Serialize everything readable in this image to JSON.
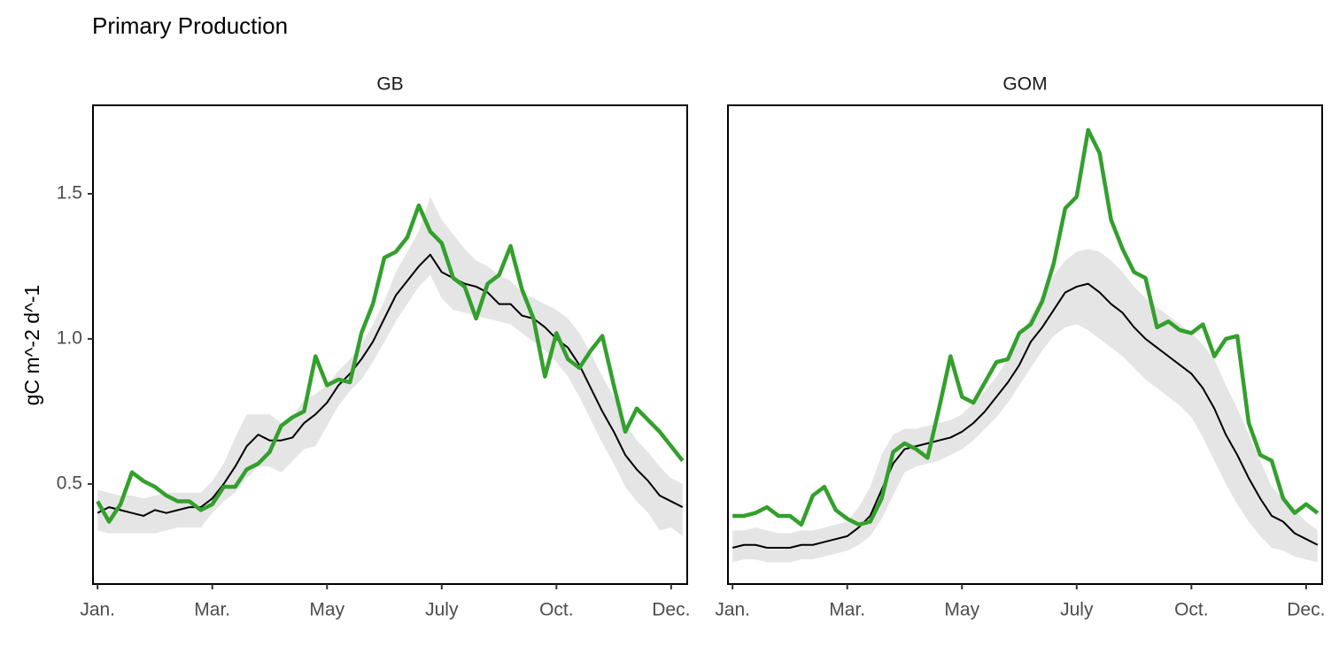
{
  "title": "Primary Production",
  "ylabel": "gC m^-2 d^-1",
  "chart_data": [
    {
      "type": "line",
      "facet": "GB",
      "x": [
        1,
        2,
        3,
        4,
        5,
        6,
        7,
        8,
        9,
        10,
        11,
        12,
        13,
        14,
        15,
        16,
        17,
        18,
        19,
        20,
        21,
        22,
        23,
        24,
        25,
        26,
        27,
        28,
        29,
        30,
        31,
        32,
        33,
        34,
        35,
        36,
        37,
        38,
        39,
        40,
        41,
        42,
        43,
        44,
        45,
        46,
        47,
        48,
        49,
        50,
        51,
        52
      ],
      "xlim": [
        0.6,
        52.4
      ],
      "xticks": [
        {
          "value": 1,
          "label": "Jan."
        },
        {
          "value": 11,
          "label": "Mar."
        },
        {
          "value": 21,
          "label": "May"
        },
        {
          "value": 31,
          "label": "July"
        },
        {
          "value": 41,
          "label": "Oct."
        },
        {
          "value": 51,
          "label": "Dec."
        }
      ],
      "ylim": [
        0.155,
        1.805
      ],
      "yticks": [
        0.5,
        {
          "value": 1,
          "label": "1.0"
        },
        1.5
      ],
      "band": {
        "color": "#e5e5e5",
        "lower": [
          0.34,
          0.33,
          0.33,
          0.33,
          0.33,
          0.33,
          0.34,
          0.35,
          0.35,
          0.35,
          0.4,
          0.44,
          0.47,
          0.52,
          0.56,
          0.56,
          0.54,
          0.58,
          0.62,
          0.63,
          0.7,
          0.77,
          0.82,
          0.86,
          0.92,
          0.99,
          1.06,
          1.12,
          1.18,
          1.22,
          1.14,
          1.1,
          1.09,
          1.08,
          1.07,
          1.06,
          1.05,
          1.02,
          0.99,
          0.96,
          0.92,
          0.87,
          0.8,
          0.72,
          0.64,
          0.57,
          0.49,
          0.44,
          0.4,
          0.34,
          0.35,
          0.32
        ],
        "upper": [
          0.48,
          0.47,
          0.46,
          0.46,
          0.45,
          0.46,
          0.47,
          0.47,
          0.47,
          0.47,
          0.51,
          0.57,
          0.66,
          0.74,
          0.74,
          0.74,
          0.71,
          0.73,
          0.79,
          0.81,
          0.84,
          0.89,
          0.93,
          0.98,
          1.05,
          1.13,
          1.23,
          1.3,
          1.37,
          1.49,
          1.41,
          1.36,
          1.31,
          1.27,
          1.25,
          1.22,
          1.2,
          1.16,
          1.14,
          1.12,
          1.1,
          1.07,
          1.02,
          0.95,
          0.87,
          0.8,
          0.71,
          0.65,
          0.61,
          0.56,
          0.52,
          0.5
        ]
      },
      "series": [
        {
          "color": "#000000",
          "width": 2,
          "values": [
            0.4,
            0.42,
            0.41,
            0.4,
            0.39,
            0.41,
            0.4,
            0.41,
            0.42,
            0.42,
            0.45,
            0.5,
            0.56,
            0.63,
            0.67,
            0.65,
            0.65,
            0.66,
            0.71,
            0.74,
            0.78,
            0.84,
            0.88,
            0.93,
            0.99,
            1.07,
            1.15,
            1.2,
            1.25,
            1.29,
            1.23,
            1.21,
            1.19,
            1.18,
            1.16,
            1.12,
            1.12,
            1.08,
            1.07,
            1.04,
            1.0,
            0.97,
            0.91,
            0.83,
            0.75,
            0.68,
            0.6,
            0.55,
            0.51,
            0.46,
            0.44,
            0.42
          ]
        },
        {
          "color": "#33a02c",
          "width": 4.5,
          "values": [
            0.44,
            0.37,
            0.43,
            0.54,
            0.51,
            0.49,
            0.46,
            0.44,
            0.44,
            0.41,
            0.43,
            0.49,
            0.49,
            0.55,
            0.57,
            0.61,
            0.7,
            0.73,
            0.75,
            0.94,
            0.84,
            0.86,
            0.85,
            1.02,
            1.12,
            1.28,
            1.3,
            1.35,
            1.46,
            1.37,
            1.33,
            1.21,
            1.18,
            1.07,
            1.19,
            1.22,
            1.32,
            1.17,
            1.07,
            0.87,
            1.02,
            0.93,
            0.9,
            0.96,
            1.01,
            0.84,
            0.68,
            0.76,
            0.72,
            0.68,
            0.63,
            0.58
          ]
        }
      ]
    },
    {
      "type": "line",
      "facet": "GOM",
      "x": [
        1,
        2,
        3,
        4,
        5,
        6,
        7,
        8,
        9,
        10,
        11,
        12,
        13,
        14,
        15,
        16,
        17,
        18,
        19,
        20,
        21,
        22,
        23,
        24,
        25,
        26,
        27,
        28,
        29,
        30,
        31,
        32,
        33,
        34,
        35,
        36,
        37,
        38,
        39,
        40,
        41,
        42,
        43,
        44,
        45,
        46,
        47,
        48,
        49,
        50,
        51,
        52
      ],
      "xlim": [
        0.6,
        52.4
      ],
      "xticks": [
        {
          "value": 1,
          "label": "Jan."
        },
        {
          "value": 11,
          "label": "Mar."
        },
        {
          "value": 21,
          "label": "May"
        },
        {
          "value": 31,
          "label": "July"
        },
        {
          "value": 41,
          "label": "Oct."
        },
        {
          "value": 51,
          "label": "Dec."
        }
      ],
      "ylim": [
        0.155,
        1.805
      ],
      "band": {
        "color": "#e5e5e5",
        "lower": [
          0.23,
          0.24,
          0.24,
          0.23,
          0.23,
          0.23,
          0.24,
          0.24,
          0.25,
          0.26,
          0.27,
          0.29,
          0.32,
          0.38,
          0.46,
          0.54,
          0.56,
          0.57,
          0.58,
          0.6,
          0.62,
          0.65,
          0.69,
          0.73,
          0.78,
          0.84,
          0.9,
          0.96,
          1.01,
          1.04,
          1.05,
          1.03,
          1.0,
          0.97,
          0.94,
          0.9,
          0.86,
          0.83,
          0.8,
          0.77,
          0.73,
          0.66,
          0.58,
          0.5,
          0.43,
          0.37,
          0.32,
          0.28,
          0.27,
          0.25,
          0.24,
          0.23
        ],
        "upper": [
          0.34,
          0.34,
          0.35,
          0.34,
          0.33,
          0.33,
          0.34,
          0.34,
          0.35,
          0.36,
          0.37,
          0.42,
          0.49,
          0.6,
          0.67,
          0.69,
          0.69,
          0.7,
          0.71,
          0.72,
          0.74,
          0.78,
          0.82,
          0.87,
          0.93,
          1.0,
          1.08,
          1.15,
          1.22,
          1.27,
          1.3,
          1.31,
          1.3,
          1.27,
          1.23,
          1.18,
          1.14,
          1.11,
          1.08,
          1.05,
          1.02,
          0.98,
          0.93,
          0.84,
          0.76,
          0.67,
          0.58,
          0.49,
          0.45,
          0.41,
          0.37,
          0.34
        ]
      },
      "series": [
        {
          "color": "#000000",
          "width": 2,
          "values": [
            0.28,
            0.29,
            0.29,
            0.28,
            0.28,
            0.28,
            0.29,
            0.29,
            0.3,
            0.31,
            0.32,
            0.35,
            0.39,
            0.48,
            0.57,
            0.62,
            0.63,
            0.64,
            0.65,
            0.66,
            0.68,
            0.71,
            0.75,
            0.8,
            0.85,
            0.91,
            0.99,
            1.04,
            1.1,
            1.16,
            1.18,
            1.19,
            1.16,
            1.12,
            1.09,
            1.04,
            1.0,
            0.97,
            0.94,
            0.91,
            0.88,
            0.83,
            0.76,
            0.67,
            0.6,
            0.52,
            0.45,
            0.39,
            0.37,
            0.33,
            0.31,
            0.29
          ]
        },
        {
          "color": "#33a02c",
          "width": 4.5,
          "values": [
            0.39,
            0.39,
            0.4,
            0.42,
            0.39,
            0.39,
            0.36,
            0.46,
            0.49,
            0.41,
            0.38,
            0.36,
            0.37,
            0.45,
            0.61,
            0.64,
            0.62,
            0.59,
            0.76,
            0.94,
            0.8,
            0.78,
            0.85,
            0.92,
            0.93,
            1.02,
            1.05,
            1.13,
            1.26,
            1.45,
            1.49,
            1.72,
            1.64,
            1.41,
            1.31,
            1.23,
            1.21,
            1.04,
            1.06,
            1.03,
            1.02,
            1.05,
            0.94,
            1.0,
            1.01,
            0.71,
            0.6,
            0.58,
            0.45,
            0.4,
            0.43,
            0.4
          ]
        }
      ]
    }
  ]
}
